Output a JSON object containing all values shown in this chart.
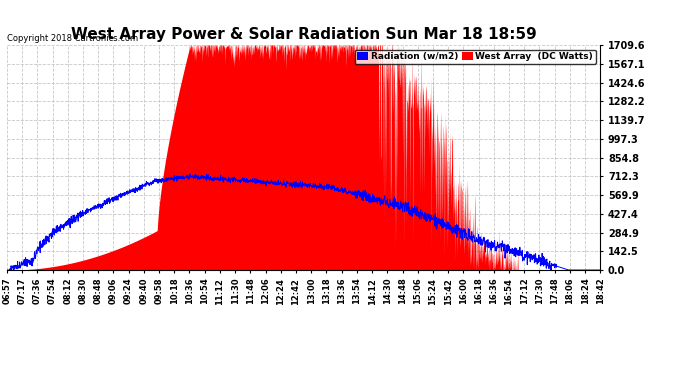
{
  "title": "West Array Power & Solar Radiation Sun Mar 18 18:59",
  "copyright": "Copyright 2018 Cartronics.com",
  "legend_labels": [
    "Radiation (w/m2)",
    "West Array  (DC Watts)"
  ],
  "legend_colors": [
    "#0000ff",
    "#ff0000"
  ],
  "y_ticks": [
    0.0,
    142.5,
    284.9,
    427.4,
    569.9,
    712.3,
    854.8,
    997.3,
    1139.7,
    1282.2,
    1424.6,
    1567.1,
    1709.6
  ],
  "x_labels": [
    "06:57",
    "07:17",
    "07:36",
    "07:54",
    "08:12",
    "08:30",
    "08:48",
    "09:06",
    "09:24",
    "09:40",
    "09:58",
    "10:18",
    "10:36",
    "10:54",
    "11:12",
    "11:30",
    "11:48",
    "12:06",
    "12:24",
    "12:42",
    "13:00",
    "13:18",
    "13:36",
    "13:54",
    "14:12",
    "14:30",
    "14:48",
    "15:06",
    "15:24",
    "15:42",
    "16:00",
    "16:18",
    "16:36",
    "16:54",
    "17:12",
    "17:30",
    "17:48",
    "18:06",
    "18:24",
    "18:42"
  ],
  "background_color": "#ffffff",
  "plot_bg_color": "#ffffff",
  "grid_color": "#c8c8c8",
  "title_fontsize": 11,
  "red_color": "#ff0000",
  "blue_color": "#0000ff",
  "ymax": 1709.6,
  "ymin": 0.0
}
